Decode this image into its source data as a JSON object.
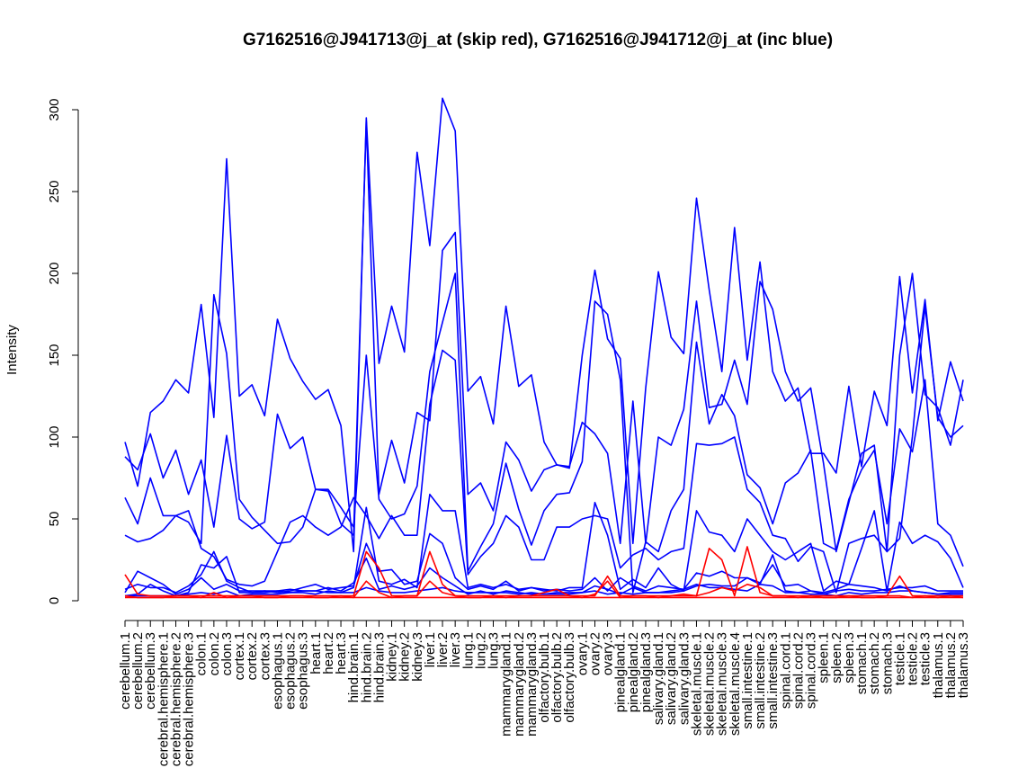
{
  "chart_data": {
    "type": "line",
    "title": "G7162516@J941713@j_at (skip red), G7162516@J941712@j_at (inc blue)",
    "xlabel": "",
    "ylabel": "Intensity",
    "ylim": [
      0,
      300
    ],
    "yticks": [
      0,
      50,
      100,
      150,
      200,
      250,
      300
    ],
    "grid": false,
    "legend": "none",
    "colors": {
      "skip": "#ff0000",
      "inc": "#0000ff"
    },
    "categories": [
      "cerebellum.1",
      "cerebellum.2",
      "cerebellum.3",
      "cerebral.hemisphere.1",
      "cerebral.hemisphere.2",
      "cerebral.hemisphere.3",
      "colon.1",
      "colon.2",
      "colon.3",
      "cortex.1",
      "cortex.2",
      "cortex.3",
      "esophagus.1",
      "esophagus.2",
      "esophagus.3",
      "heart.1",
      "heart.2",
      "heart.3",
      "hind.brain.1",
      "hind.brain.2",
      "hind.brain.3",
      "kidney.1",
      "kidney.2",
      "kidney.3",
      "liver.1",
      "liver.2",
      "liver.3",
      "lung.1",
      "lung.2",
      "lung.3",
      "mammarygland.1",
      "mammarygland.2",
      "mammarygland.3",
      "olfactory.bulb.1",
      "olfactory.bulb.2",
      "olfactory.bulb.3",
      "ovary.1",
      "ovary.2",
      "ovary.3",
      "pinealgland.1",
      "pinealgland.2",
      "pinealgland.3",
      "salivary.gland.1",
      "salivary.gland.2",
      "salivary.gland.3",
      "skeletal.muscle.1",
      "skeletal.muscle.2",
      "skeletal.muscle.3",
      "skeletal.muscle.4",
      "small.intestine.1",
      "small.intestine.2",
      "small.intestine.3",
      "spinal.cord.1",
      "spinal.cord.2",
      "spinal.cord.3",
      "spleen.1",
      "spleen.2",
      "spleen.3",
      "stomach.1",
      "stomach.2",
      "stomach.3",
      "testicle.1",
      "testicle.2",
      "testicle.3",
      "thalamus.1",
      "thalamus.2",
      "thalamus.3"
    ],
    "series": [
      {
        "group": "inc",
        "values": [
          97,
          70,
          115,
          122,
          135,
          127,
          181,
          112,
          270,
          125,
          132,
          113,
          172,
          148,
          134,
          123,
          129,
          107,
          30,
          295,
          145,
          180,
          152,
          274,
          217,
          307,
          287,
          128,
          137,
          108,
          180,
          131,
          138,
          97,
          83,
          81,
          150,
          202,
          160,
          148,
          35,
          130,
          201,
          161,
          151,
          246,
          190,
          140,
          228,
          147,
          207,
          140,
          122,
          130,
          90,
          90,
          78,
          131,
          82,
          128,
          107,
          198,
          127,
          184,
          110,
          146,
          122
        ]
      },
      {
        "group": "inc",
        "values": [
          88,
          80,
          102,
          75,
          92,
          65,
          86,
          45,
          101,
          50,
          44,
          48,
          114,
          93,
          100,
          68,
          67,
          47,
          40,
          293,
          65,
          98,
          72,
          115,
          110,
          214,
          225,
          65,
          72,
          55,
          97,
          86,
          67,
          80,
          83,
          82,
          109,
          102,
          90,
          35,
          122,
          35,
          100,
          95,
          117,
          183,
          118,
          120,
          147,
          120,
          195,
          178,
          140,
          122,
          130,
          84,
          30,
          60,
          90,
          95,
          30,
          150,
          200,
          126,
          118,
          95,
          135
        ]
      },
      {
        "group": "inc",
        "values": [
          63,
          47,
          75,
          52,
          52,
          48,
          35,
          187,
          151,
          62,
          51,
          43,
          35,
          36,
          45,
          68,
          68,
          57,
          45,
          150,
          62,
          50,
          53,
          70,
          140,
          170,
          200,
          18,
          33,
          47,
          84,
          56,
          34,
          55,
          65,
          66,
          85,
          183,
          175,
          135,
          5,
          36,
          30,
          55,
          68,
          158,
          108,
          126,
          113,
          77,
          69,
          47,
          72,
          78,
          92,
          35,
          31,
          62,
          80,
          92,
          47,
          105,
          91,
          135,
          47,
          40,
          21
        ]
      },
      {
        "group": "inc",
        "values": [
          40,
          36,
          38,
          43,
          52,
          55,
          32,
          27,
          13,
          10,
          9,
          12,
          30,
          48,
          52,
          45,
          40,
          45,
          63,
          52,
          38,
          52,
          40,
          40,
          120,
          153,
          147,
          16,
          27,
          35,
          52,
          45,
          25,
          25,
          45,
          45,
          50,
          52,
          50,
          20,
          28,
          32,
          25,
          30,
          32,
          96,
          95,
          96,
          100,
          68,
          60,
          40,
          38,
          24,
          33,
          30,
          5,
          35,
          38,
          40,
          30,
          38,
          100,
          180,
          112,
          100,
          107
        ]
      },
      {
        "group": "inc",
        "values": [
          3,
          4,
          10,
          6,
          3,
          5,
          22,
          20,
          27,
          5,
          5,
          5,
          6,
          5,
          6,
          6,
          5,
          5,
          8,
          57,
          12,
          10,
          13,
          8,
          65,
          55,
          55,
          8,
          10,
          8,
          10,
          7,
          8,
          7,
          6,
          8,
          8,
          60,
          40,
          7,
          13,
          8,
          20,
          10,
          6,
          55,
          42,
          40,
          30,
          50,
          40,
          30,
          25,
          30,
          35,
          6,
          12,
          10,
          32,
          55,
          6,
          48,
          35,
          40,
          36,
          26,
          8
        ]
      },
      {
        "group": "inc",
        "values": [
          5,
          18,
          14,
          10,
          4,
          7,
          14,
          7,
          10,
          6,
          6,
          6,
          6,
          7,
          6,
          6,
          8,
          6,
          11,
          26,
          7,
          9,
          7,
          9,
          20,
          14,
          9,
          4,
          6,
          4,
          6,
          5,
          4,
          4,
          5,
          5,
          5,
          9,
          7,
          4,
          8,
          5,
          5,
          5,
          6,
          9,
          10,
          9,
          9,
          14,
          10,
          28,
          6,
          5,
          6,
          4,
          6,
          7,
          6,
          6,
          7,
          8,
          8,
          9,
          6,
          6,
          6
        ]
      },
      {
        "group": "inc",
        "values": [
          7,
          10,
          8,
          8,
          5,
          9,
          16,
          30,
          12,
          8,
          5,
          6,
          5,
          6,
          8,
          10,
          7,
          8,
          9,
          35,
          18,
          19,
          10,
          12,
          41,
          35,
          14,
          7,
          9,
          7,
          12,
          6,
          8,
          6,
          7,
          6,
          7,
          14,
          6,
          14,
          9,
          6,
          9,
          8,
          7,
          17,
          15,
          18,
          14,
          14,
          11,
          22,
          9,
          10,
          6,
          5,
          7,
          10,
          9,
          8,
          6,
          9,
          6,
          5,
          4,
          5,
          5
        ]
      },
      {
        "group": "inc",
        "values": [
          3,
          3,
          3,
          3,
          3,
          4,
          5,
          4,
          6,
          3,
          4,
          4,
          4,
          5,
          5,
          4,
          6,
          5,
          5,
          8,
          6,
          5,
          5,
          6,
          7,
          8,
          6,
          5,
          5,
          5,
          5,
          4,
          5,
          4,
          4,
          4,
          5,
          6,
          4,
          5,
          4,
          5,
          5,
          6,
          7,
          10,
          8,
          8,
          7,
          6,
          10,
          9,
          5,
          5,
          4,
          4,
          3,
          5,
          4,
          5,
          5,
          6,
          6,
          5,
          4,
          4,
          4
        ]
      },
      {
        "group": "skip",
        "values": [
          16,
          4,
          3,
          3,
          3,
          3,
          3,
          3,
          3,
          3,
          3,
          3,
          3,
          3,
          3,
          3,
          3,
          3,
          3,
          30,
          20,
          3,
          3,
          3,
          30,
          10,
          3,
          3,
          3,
          3,
          3,
          3,
          3,
          3,
          3,
          3,
          3,
          3,
          15,
          3,
          3,
          3,
          3,
          3,
          3,
          3,
          32,
          25,
          3,
          33,
          5,
          3,
          3,
          3,
          3,
          3,
          3,
          3,
          3,
          3,
          3,
          15,
          3,
          3,
          3,
          3,
          3
        ]
      },
      {
        "group": "skip",
        "values": [
          3,
          2,
          2,
          2,
          3,
          3,
          2,
          5,
          2,
          3,
          3,
          2,
          2,
          3,
          3,
          2,
          2,
          3,
          2,
          12,
          5,
          2,
          3,
          3,
          12,
          5,
          3,
          2,
          2,
          3,
          2,
          3,
          3,
          5,
          7,
          3,
          2,
          4,
          12,
          2,
          3,
          3,
          2,
          3,
          4,
          3,
          5,
          8,
          6,
          10,
          8,
          3,
          3,
          2,
          3,
          2,
          2,
          3,
          2,
          2,
          3,
          3,
          2,
          3,
          2,
          3,
          2
        ]
      },
      {
        "group": "skip",
        "values": [
          2,
          2,
          2,
          2,
          2,
          2,
          2,
          2,
          2,
          2,
          2,
          2,
          2,
          2,
          2,
          2,
          2,
          2,
          2,
          2,
          2,
          2,
          2,
          2,
          2,
          2,
          2,
          2,
          2,
          2,
          2,
          2,
          2,
          2,
          2,
          2,
          2,
          2,
          2,
          2,
          2,
          2,
          2,
          2,
          2,
          2,
          2,
          2,
          2,
          2,
          2,
          2,
          2,
          2,
          2,
          2,
          2,
          2,
          2,
          2,
          2,
          2,
          2,
          2,
          2,
          2,
          2
        ]
      }
    ]
  }
}
